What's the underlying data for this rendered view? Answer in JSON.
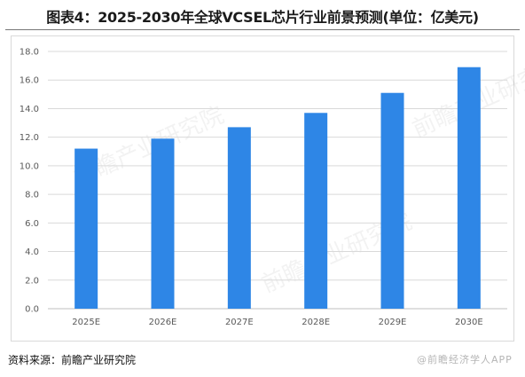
{
  "title": "图表4：2025-2030年全球VCSEL芯片行业前景预测(单位：亿美元)",
  "source": "资料来源：前瞻产业研究院",
  "brand_mark": "@前瞻经济学人APP",
  "watermark": "前瞻产业研究院",
  "colors": {
    "bar": "#2e86e6",
    "grid": "#d9d9d9",
    "axis": "#bfbfbf",
    "text": "#595959"
  },
  "chart_data": {
    "type": "bar",
    "title": "图表4：2025-2030年全球VCSEL芯片行业前景预测(单位：亿美元)",
    "categories": [
      "2025E",
      "2026E",
      "2027E",
      "2028E",
      "2029E",
      "2030E"
    ],
    "values": [
      11.2,
      11.9,
      12.7,
      13.7,
      15.1,
      16.9
    ],
    "ylim": [
      0,
      18
    ],
    "yticks": [
      "0.0",
      "2.0",
      "4.0",
      "6.0",
      "8.0",
      "10.0",
      "12.0",
      "14.0",
      "16.0",
      "18.0"
    ],
    "xlabel": "",
    "ylabel": "",
    "grid": true,
    "legend": "none"
  }
}
